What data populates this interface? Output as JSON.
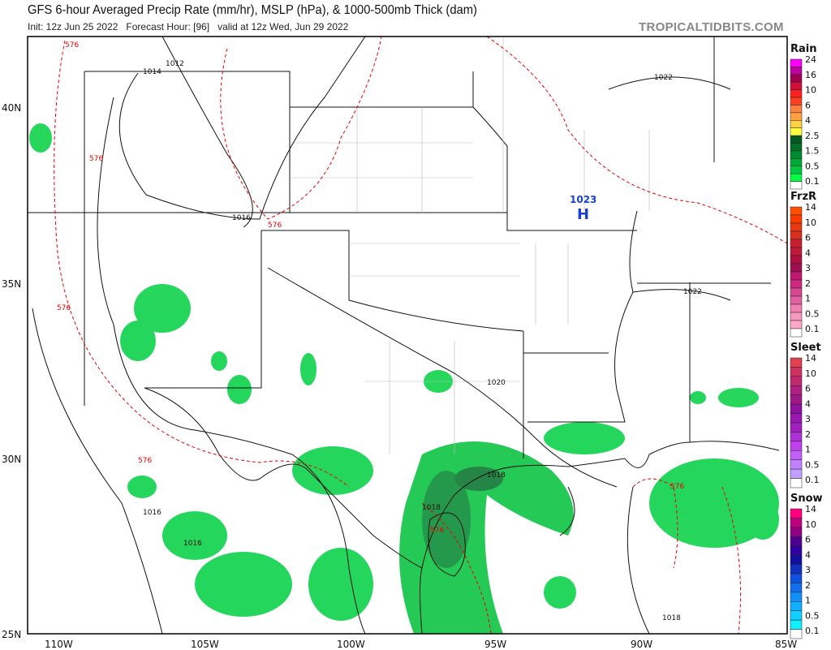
{
  "header": {
    "title": "GFS 6-hour Averaged Precip Rate (mm/hr), MSLP (hPa), & 1000-500mb Thick (dam)",
    "subtitle": "Init: 12z Jun 25 2022   Forecast Hour: [96]   valid at 12z Wed, Jun 29 2022",
    "brand": "TROPICALTIDBITS.COM"
  },
  "axes": {
    "lon_labels": [
      "110W",
      "105W",
      "100W",
      "95W",
      "90W",
      "85W"
    ],
    "lat_labels": [
      "40N",
      "35N",
      "30N",
      "25N"
    ]
  },
  "high_center": {
    "label": "H",
    "pressure": "1023",
    "color": "#1a3fd6"
  },
  "isobar_labels": [
    "1012",
    "1014",
    "1016",
    "1016",
    "1022",
    "1022",
    "1020",
    "1018",
    "1018",
    "1016",
    "1018"
  ],
  "thickness_labels": [
    "576",
    "576",
    "576",
    "576",
    "576",
    "576",
    "576"
  ],
  "legends": [
    {
      "title": "Rain",
      "colors": [
        "#ff00ff",
        "#c000a0",
        "#a00050",
        "#d0103a",
        "#ff2020",
        "#ff4020",
        "#ff8040",
        "#ffa040",
        "#ffd040",
        "#ffff40",
        "#005a20",
        "#007028",
        "#008a30",
        "#00a838",
        "#00c840",
        "#00ff40",
        "#ffffff"
      ],
      "ticks": [
        "24",
        "16",
        "10",
        "6",
        "4",
        "2.5",
        "1.5",
        "0.5",
        "0.1"
      ]
    },
    {
      "title": "FrzR",
      "colors": [
        "#ff5000",
        "#ff3a00",
        "#e83a10",
        "#d83020",
        "#c82030",
        "#c01838",
        "#b01040",
        "#a01050",
        "#c01870",
        "#d02880",
        "#d84890",
        "#e060a0",
        "#f080b0",
        "#f898c0",
        "#ffa8c8",
        "#ffffff"
      ],
      "ticks": [
        "14",
        "10",
        "6",
        "4",
        "3",
        "2",
        "1",
        "0.5",
        "0.1"
      ]
    },
    {
      "title": "Sleet",
      "colors": [
        "#e04050",
        "#d03060",
        "#c02870",
        "#b02080",
        "#a01888",
        "#9010a0",
        "#9818b0",
        "#a020c0",
        "#b030d8",
        "#c040f0",
        "#c060f8",
        "#c080ff",
        "#c0a0ff",
        "#ffffff"
      ],
      "ticks": [
        "14",
        "10",
        "6",
        "4",
        "3",
        "2",
        "1",
        "0.5",
        "0.1"
      ]
    },
    {
      "title": "Snow",
      "colors": [
        "#ff0080",
        "#c00080",
        "#900080",
        "#500090",
        "#3000a0",
        "#1010a0",
        "#1030c0",
        "#1050e0",
        "#1070f0",
        "#1090f8",
        "#10b0ff",
        "#10d0ff",
        "#10f0ff",
        "#ffffff"
      ],
      "ticks": [
        "14",
        "10",
        "6",
        "4",
        "3",
        "2",
        "1",
        "0.5",
        "0.1"
      ]
    }
  ]
}
